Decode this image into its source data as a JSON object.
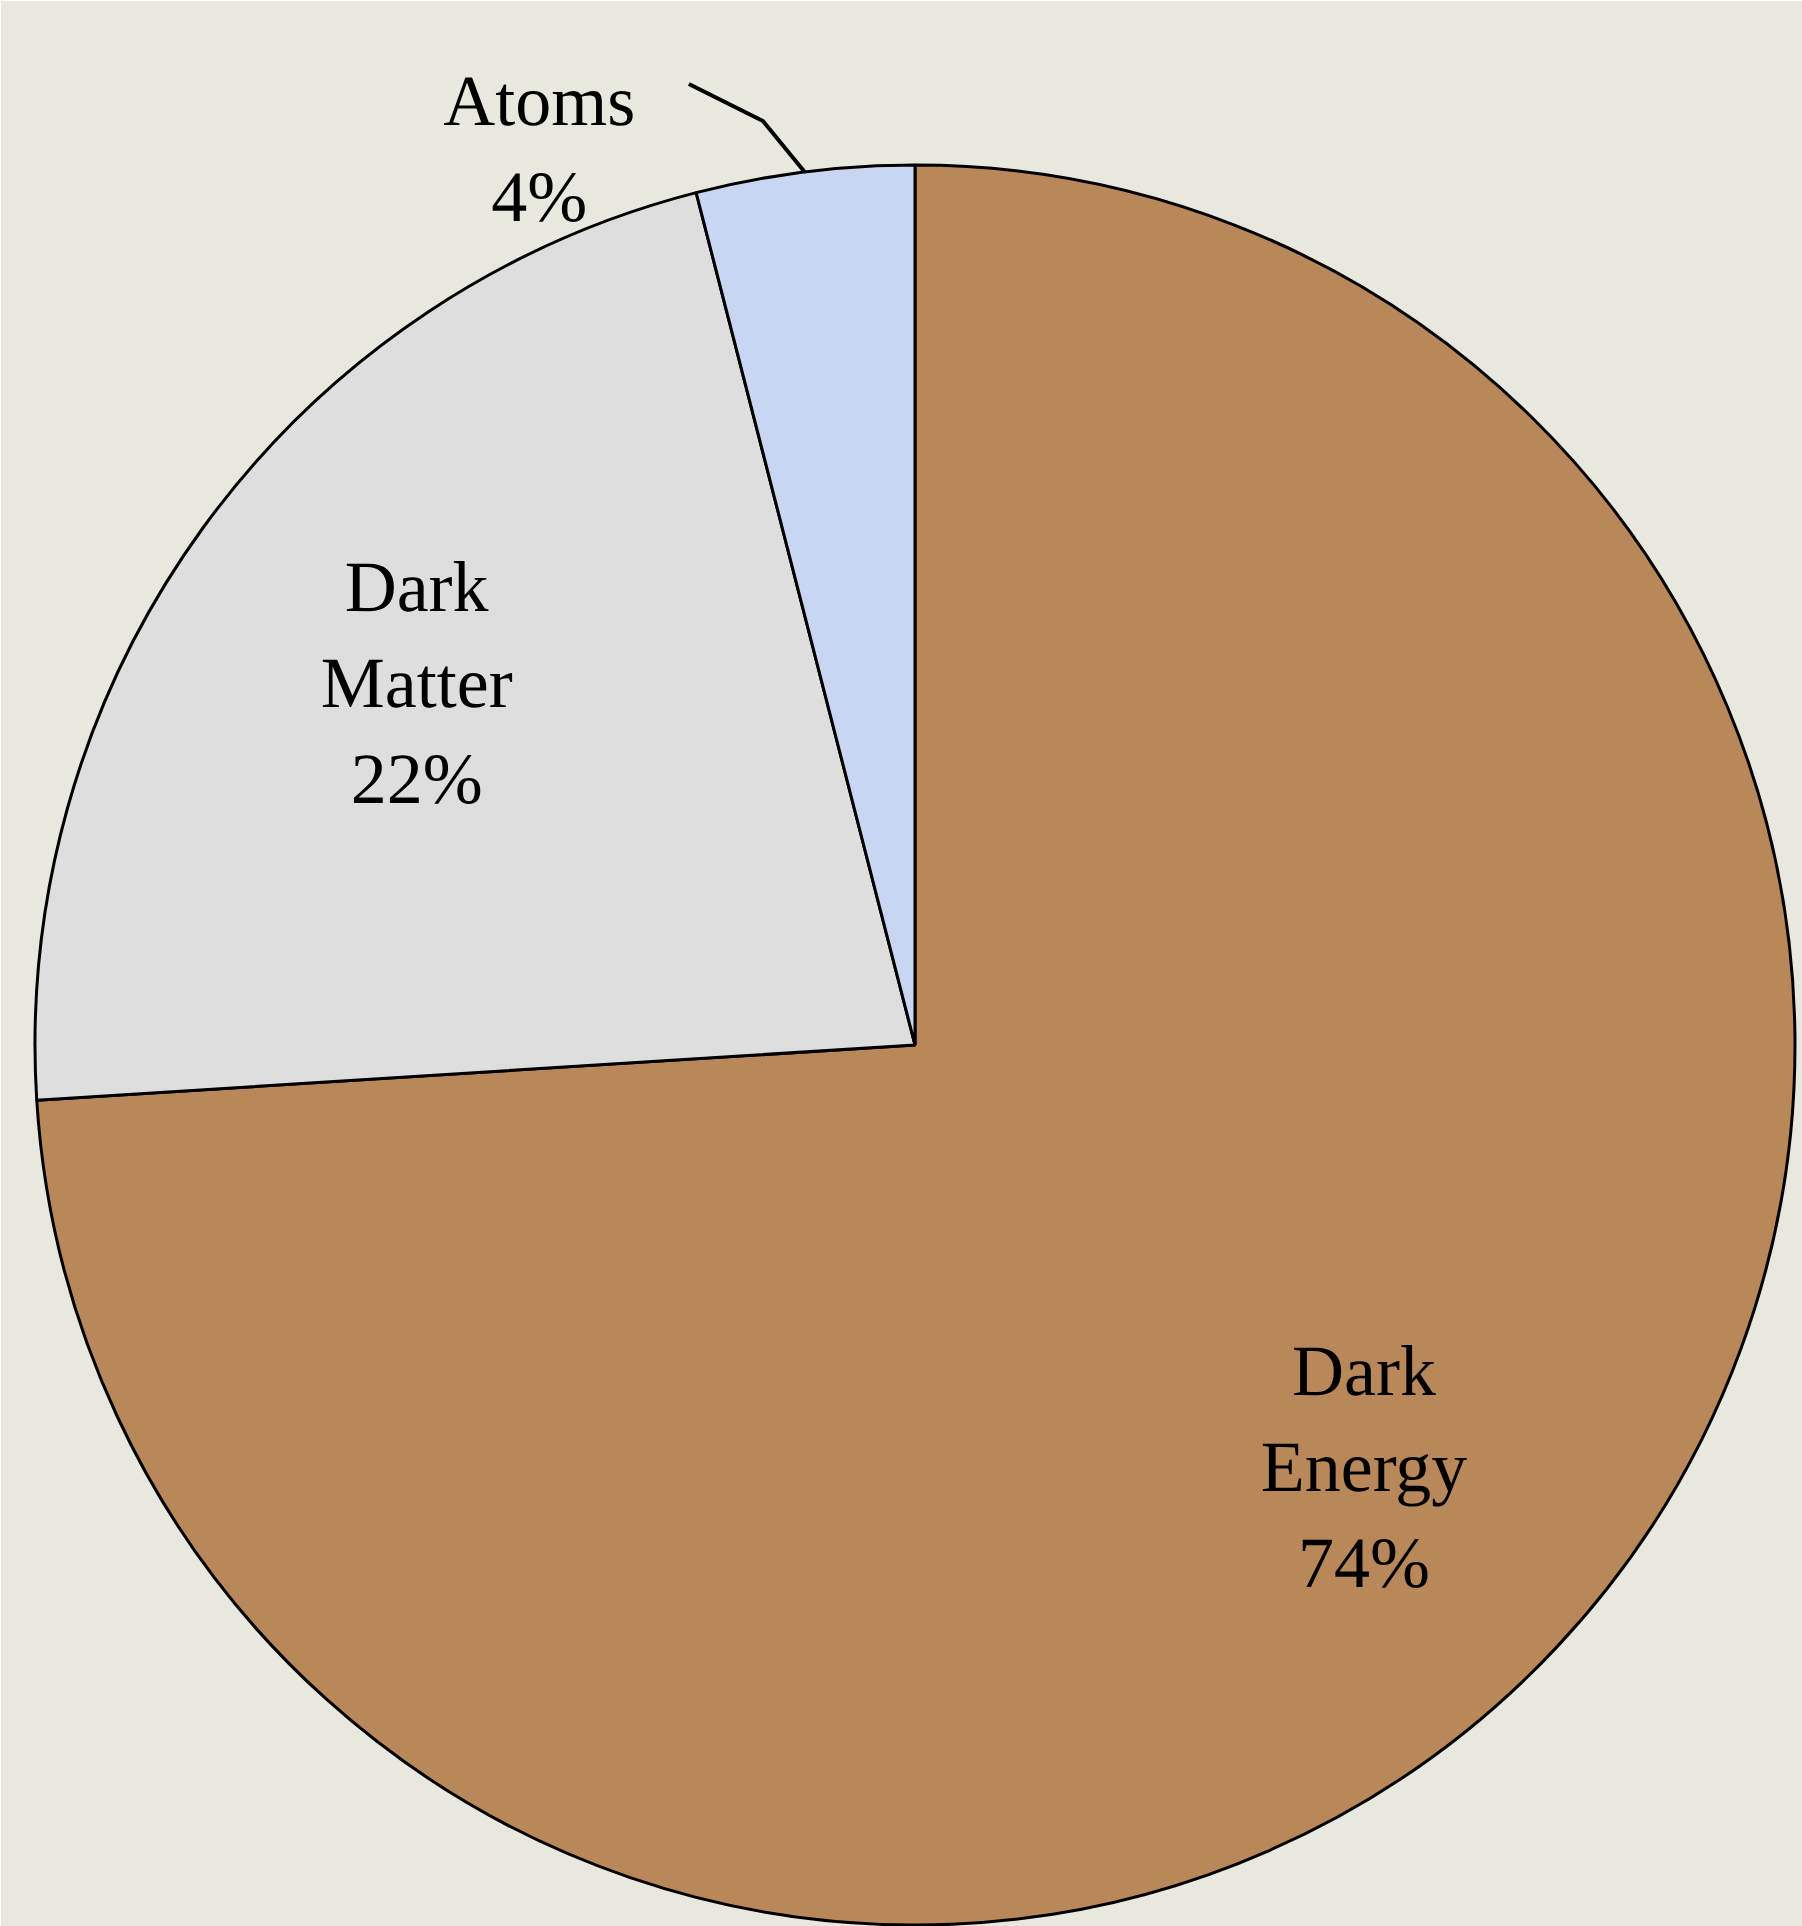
{
  "chart_data": {
    "type": "pie",
    "categories": [
      "Dark Energy",
      "Dark Matter",
      "Atoms"
    ],
    "values": [
      74,
      22,
      4
    ],
    "colors": [
      "#b8875a",
      "#dedede",
      "#c9d6f2"
    ],
    "value_labels": [
      "74%",
      "22%",
      "4%"
    ]
  }
}
